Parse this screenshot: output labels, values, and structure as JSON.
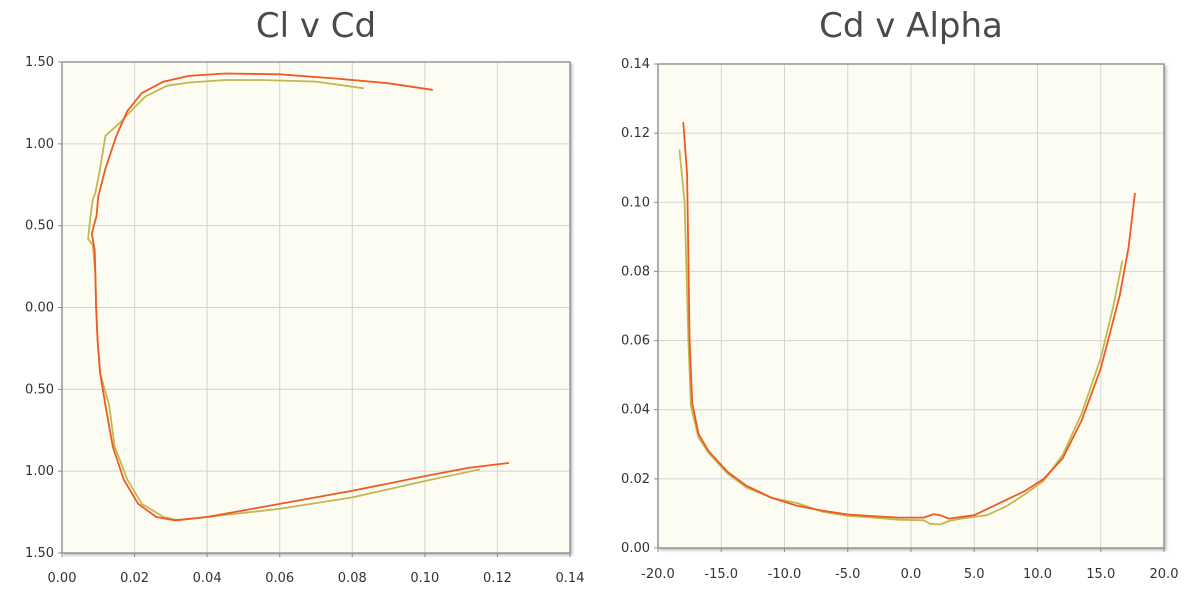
{
  "chart_data": [
    {
      "type": "line",
      "title": "Cl v Cd",
      "xlabel": "",
      "ylabel": "",
      "xlim": [
        0,
        0.14
      ],
      "ylim": [
        -1.5,
        1.5
      ],
      "x_ticks": [
        0,
        0.02,
        0.04,
        0.06,
        0.08,
        0.1,
        0.12,
        0.14
      ],
      "x_tick_labels": [
        "0.00",
        "0.02",
        "0.04",
        "0.06",
        "0.08",
        "0.10",
        "0.12",
        "0.14"
      ],
      "y_ticks": [
        1.5,
        1.0,
        0.5,
        0.0,
        -0.5,
        -1.0,
        -1.5
      ],
      "y_tick_labels": [
        "1.50",
        "1.00",
        "0.50",
        "0.00",
        "0.50",
        "1.00",
        "1.50"
      ],
      "grid": true,
      "series": [
        {
          "color": "#ee5a24",
          "points": [
            [
              0.102,
              1.33
            ],
            [
              0.09,
              1.37
            ],
            [
              0.075,
              1.4
            ],
            [
              0.06,
              1.425
            ],
            [
              0.045,
              1.43
            ],
            [
              0.035,
              1.415
            ],
            [
              0.028,
              1.38
            ],
            [
              0.022,
              1.31
            ],
            [
              0.018,
              1.2
            ],
            [
              0.015,
              1.05
            ],
            [
              0.012,
              0.85
            ],
            [
              0.01,
              0.68
            ],
            [
              0.0095,
              0.56
            ],
            [
              0.0088,
              0.5
            ],
            [
              0.0082,
              0.45
            ],
            [
              0.009,
              0.35
            ],
            [
              0.0092,
              0.2
            ],
            [
              0.0094,
              0.0
            ],
            [
              0.0098,
              -0.2
            ],
            [
              0.0105,
              -0.4
            ],
            [
              0.012,
              -0.6
            ],
            [
              0.014,
              -0.85
            ],
            [
              0.017,
              -1.05
            ],
            [
              0.021,
              -1.2
            ],
            [
              0.026,
              -1.28
            ],
            [
              0.031,
              -1.3
            ],
            [
              0.04,
              -1.28
            ],
            [
              0.06,
              -1.2
            ],
            [
              0.08,
              -1.12
            ],
            [
              0.1,
              -1.03
            ],
            [
              0.112,
              -0.98
            ],
            [
              0.123,
              -0.95
            ]
          ]
        },
        {
          "color": "#c2b852",
          "points": [
            [
              0.083,
              1.34
            ],
            [
              0.07,
              1.38
            ],
            [
              0.055,
              1.39
            ],
            [
              0.045,
              1.39
            ],
            [
              0.035,
              1.375
            ],
            [
              0.029,
              1.355
            ],
            [
              0.023,
              1.29
            ],
            [
              0.019,
              1.2
            ],
            [
              0.016,
              1.13
            ],
            [
              0.012,
              1.05
            ],
            [
              0.0105,
              0.85
            ],
            [
              0.0092,
              0.7
            ],
            [
              0.0085,
              0.66
            ],
            [
              0.0078,
              0.55
            ],
            [
              0.0072,
              0.42
            ],
            [
              0.0085,
              0.38
            ],
            [
              0.0092,
              0.2
            ],
            [
              0.0094,
              0.0
            ],
            [
              0.0098,
              -0.2
            ],
            [
              0.0105,
              -0.4
            ],
            [
              0.013,
              -0.6
            ],
            [
              0.0145,
              -0.85
            ],
            [
              0.018,
              -1.05
            ],
            [
              0.022,
              -1.2
            ],
            [
              0.028,
              -1.28
            ],
            [
              0.032,
              -1.3
            ],
            [
              0.04,
              -1.28
            ],
            [
              0.06,
              -1.23
            ],
            [
              0.08,
              -1.16
            ],
            [
              0.1,
              -1.06
            ],
            [
              0.115,
              -0.99
            ]
          ]
        }
      ]
    },
    {
      "type": "line",
      "title": "Cd v Alpha",
      "xlabel": "",
      "ylabel": "",
      "xlim": [
        -20,
        20
      ],
      "ylim": [
        0,
        0.14
      ],
      "x_ticks": [
        -20,
        -15,
        -10,
        -5,
        0,
        5,
        10,
        15,
        20
      ],
      "x_tick_labels": [
        "-20.0",
        "-15.0",
        "-10.0",
        "-5.0",
        "0.0",
        "5.0",
        "10.0",
        "15.0",
        "20.0"
      ],
      "y_ticks": [
        0,
        0.02,
        0.04,
        0.06,
        0.08,
        0.1,
        0.12,
        0.14
      ],
      "y_tick_labels": [
        "0.00",
        "0.02",
        "0.04",
        "0.06",
        "0.08",
        "0.10",
        "0.12",
        "0.14"
      ],
      "grid": true,
      "series": [
        {
          "color": "#ee5a24",
          "points": [
            [
              -18.0,
              0.123
            ],
            [
              -17.7,
              0.108
            ],
            [
              -17.5,
              0.06
            ],
            [
              -17.3,
              0.042
            ],
            [
              -16.8,
              0.033
            ],
            [
              -16.0,
              0.028
            ],
            [
              -14.5,
              0.022
            ],
            [
              -13,
              0.018
            ],
            [
              -11,
              0.0145
            ],
            [
              -9,
              0.0122
            ],
            [
              -7,
              0.0108
            ],
            [
              -5,
              0.0097
            ],
            [
              -3,
              0.0092
            ],
            [
              -1,
              0.0088
            ],
            [
              1,
              0.0088
            ],
            [
              1.8,
              0.0098
            ],
            [
              2.3,
              0.0095
            ],
            [
              3,
              0.0085
            ],
            [
              5,
              0.0095
            ],
            [
              7,
              0.013
            ],
            [
              9,
              0.0165
            ],
            [
              10.5,
              0.02
            ],
            [
              12,
              0.026
            ],
            [
              13.5,
              0.037
            ],
            [
              15,
              0.052
            ],
            [
              16.5,
              0.073
            ],
            [
              17.2,
              0.087
            ],
            [
              17.7,
              0.1025
            ]
          ]
        },
        {
          "color": "#c2b852",
          "points": [
            [
              -18.3,
              0.115
            ],
            [
              -17.9,
              0.1
            ],
            [
              -17.6,
              0.06
            ],
            [
              -17.4,
              0.041
            ],
            [
              -16.8,
              0.032
            ],
            [
              -16.0,
              0.0275
            ],
            [
              -14.5,
              0.0215
            ],
            [
              -13,
              0.0175
            ],
            [
              -11,
              0.0145
            ],
            [
              -9,
              0.013
            ],
            [
              -7,
              0.0105
            ],
            [
              -5,
              0.0093
            ],
            [
              -3,
              0.0088
            ],
            [
              -1,
              0.0082
            ],
            [
              1,
              0.008
            ],
            [
              1.5,
              0.007
            ],
            [
              2.3,
              0.0068
            ],
            [
              3,
              0.0078
            ],
            [
              4,
              0.0085
            ],
            [
              6,
              0.0095
            ],
            [
              7.5,
              0.012
            ],
            [
              9,
              0.0155
            ],
            [
              10.5,
              0.0195
            ],
            [
              12,
              0.027
            ],
            [
              13.5,
              0.039
            ],
            [
              15,
              0.055
            ],
            [
              16,
              0.07
            ],
            [
              16.7,
              0.083
            ]
          ]
        }
      ]
    }
  ]
}
